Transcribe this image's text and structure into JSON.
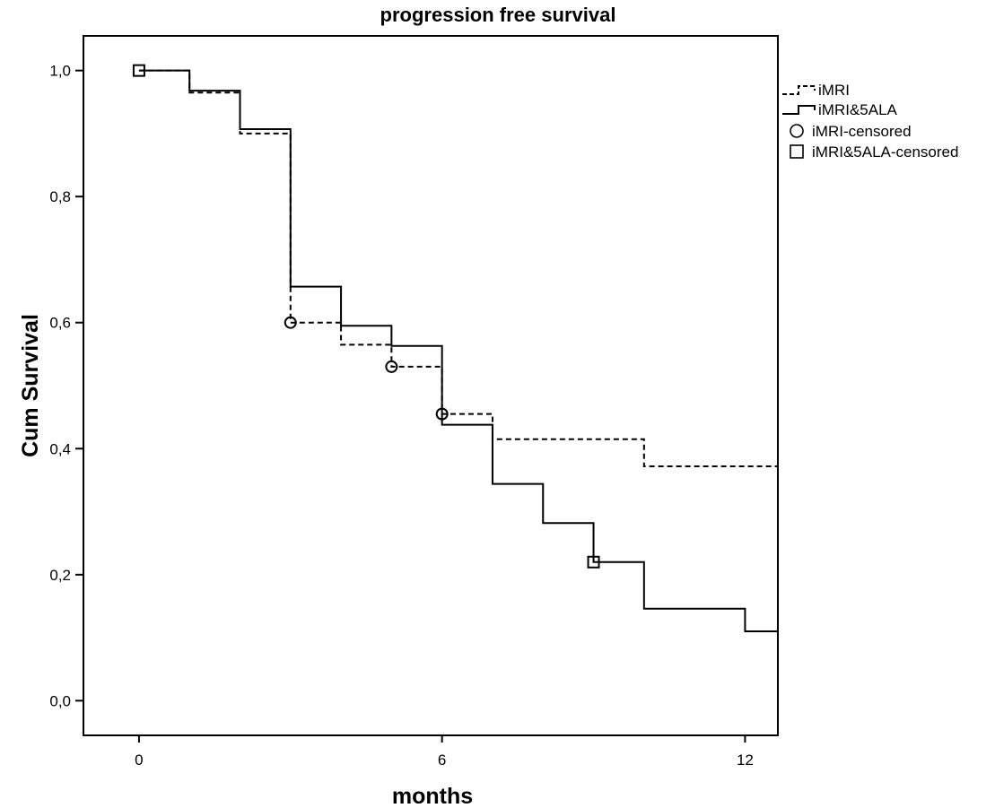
{
  "chart_data": {
    "type": "line",
    "subtype": "kaplan-meier step",
    "title": "progression free survival",
    "xlabel": "months",
    "ylabel": "Cum Survival",
    "xlim": [
      -1.1,
      12.65
    ],
    "ylim": [
      -0.055,
      1.055
    ],
    "xticks": [
      0,
      6,
      12
    ],
    "xtick_labels": [
      "0",
      "6",
      "12"
    ],
    "yticks": [
      0.0,
      0.2,
      0.4,
      0.6,
      0.8,
      1.0
    ],
    "ytick_labels": [
      "0,0",
      "0,2",
      "0,4",
      "0,6",
      "0,8",
      "1,0"
    ],
    "grid": false,
    "legend_position": "right, outside plot",
    "series": [
      {
        "name": "iMRI",
        "style": "dashed",
        "steps": [
          [
            0,
            1.0
          ],
          [
            1,
            0.965
          ],
          [
            2,
            0.9
          ],
          [
            3,
            0.6
          ],
          [
            4,
            0.565
          ],
          [
            5,
            0.53
          ],
          [
            6,
            0.455
          ],
          [
            7,
            0.415
          ],
          [
            10,
            0.372
          ],
          [
            12.65,
            0.372
          ]
        ],
        "censored": [
          [
            3,
            0.6
          ],
          [
            5,
            0.53
          ],
          [
            6,
            0.455
          ]
        ]
      },
      {
        "name": "iMRI&5ALA",
        "style": "solid",
        "steps": [
          [
            0,
            1.0
          ],
          [
            1,
            0.968
          ],
          [
            2,
            0.907
          ],
          [
            3,
            0.657
          ],
          [
            4,
            0.595
          ],
          [
            5,
            0.563
          ],
          [
            6,
            0.438
          ],
          [
            7,
            0.344
          ],
          [
            8,
            0.282
          ],
          [
            9,
            0.22
          ],
          [
            10,
            0.146
          ],
          [
            12,
            0.11
          ],
          [
            12.65,
            0.11
          ]
        ],
        "censored": [
          [
            0,
            1.0
          ],
          [
            9,
            0.22
          ]
        ]
      }
    ],
    "legend": [
      {
        "label": "iMRI",
        "marker": "dashed-line"
      },
      {
        "label": "iMRI&5ALA",
        "marker": "solid-line"
      },
      {
        "label": "iMRI-censored",
        "marker": "circle"
      },
      {
        "label": "iMRI&5ALA-censored",
        "marker": "square"
      }
    ]
  }
}
